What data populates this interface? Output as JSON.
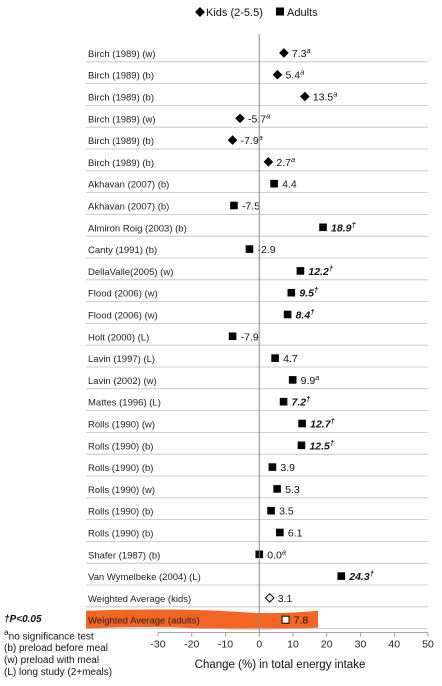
{
  "chart_data": {
    "type": "scatter",
    "legend": [
      {
        "name": "Kids (2-5.5)",
        "marker": "diamond"
      },
      {
        "name": "Adults",
        "marker": "square"
      }
    ],
    "legend_position": "top",
    "xlabel": "Change (%) in total energy intake",
    "xlim": [
      -30,
      50
    ],
    "xticks": [
      "-30",
      "-20",
      "-10",
      "0",
      "10",
      "20",
      "30",
      "40",
      "50"
    ],
    "highlight_color": "#f26522",
    "rows": [
      {
        "label": "Birch (1989)  (w)",
        "value": 7.3,
        "marker": "diamond",
        "value_text": "7.3",
        "sup": "a",
        "bold": false
      },
      {
        "label": "Birch (1989)  (b)",
        "value": 5.4,
        "marker": "diamond",
        "value_text": "5.4",
        "sup": "a",
        "bold": false
      },
      {
        "label": "Birch (1989)  (b)",
        "value": 13.5,
        "marker": "diamond",
        "value_text": "13.5",
        "sup": "a",
        "bold": false
      },
      {
        "label": "Birch (1989)  (w)",
        "value": -5.7,
        "marker": "diamond",
        "value_text": "-5.7",
        "sup": "a",
        "bold": false
      },
      {
        "label": "Birch (1989)  (b)",
        "value": -7.9,
        "marker": "diamond",
        "value_text": "-7.9",
        "sup": "a",
        "bold": false
      },
      {
        "label": "Birch (1989)  (b)",
        "value": 2.7,
        "marker": "diamond",
        "value_text": "2.7",
        "sup": "a",
        "bold": false
      },
      {
        "label": "Akhavan (2007) (b)",
        "value": 4.4,
        "marker": "square",
        "value_text": "4.4",
        "sup": "",
        "bold": false
      },
      {
        "label": "Akhavan (2007) (b)",
        "value": -7.5,
        "marker": "square",
        "value_text": "-7.5",
        "sup": "",
        "bold": false
      },
      {
        "label": "Almiron Roig (2003) (b)",
        "value": 18.9,
        "marker": "square",
        "value_text": "18.9",
        "sup": "†",
        "bold": true
      },
      {
        "label": "Canty (1991) (b)",
        "value": -2.9,
        "marker": "square",
        "value_text": "-2.9",
        "sup": "",
        "bold": false
      },
      {
        "label": "DellaValle(2005) (w)",
        "value": 12.2,
        "marker": "square",
        "value_text": "12.2",
        "sup": "†",
        "bold": true
      },
      {
        "label": "Flood (2006) (w)",
        "value": 9.5,
        "marker": "square",
        "value_text": "9.5",
        "sup": "†",
        "bold": true
      },
      {
        "label": "Flood (2006) (w)",
        "value": 8.4,
        "marker": "square",
        "value_text": "8.4",
        "sup": "†",
        "bold": true
      },
      {
        "label": "Holt (2000) (L)",
        "value": -7.9,
        "marker": "square",
        "value_text": "-7.9",
        "sup": "",
        "bold": false
      },
      {
        "label": "Lavin (1997) (L)",
        "value": 4.7,
        "marker": "square",
        "value_text": "4.7",
        "sup": "",
        "bold": false
      },
      {
        "label": "Lavin (2002) (w)",
        "value": 9.9,
        "marker": "square",
        "value_text": "9.9",
        "sup": "a",
        "bold": false
      },
      {
        "label": "Mattes (1996) (L)",
        "value": 7.2,
        "marker": "square",
        "value_text": "7.2",
        "sup": "†",
        "bold": true
      },
      {
        "label": "Rolls (1990) (w)",
        "value": 12.7,
        "marker": "square",
        "value_text": "12.7",
        "sup": "†",
        "bold": true
      },
      {
        "label": "Rolls (1990) (b)",
        "value": 12.5,
        "marker": "square",
        "value_text": "12.5",
        "sup": "†",
        "bold": true
      },
      {
        "label": "Rolls (1990) (b)",
        "value": 3.9,
        "marker": "square",
        "value_text": "3.9",
        "sup": "",
        "bold": false
      },
      {
        "label": "Rolls (1990) (w)",
        "value": 5.3,
        "marker": "square",
        "value_text": "5.3",
        "sup": "",
        "bold": false
      },
      {
        "label": "Rolls (1990) (b)",
        "value": 3.5,
        "marker": "square",
        "value_text": "3.5",
        "sup": "",
        "bold": false
      },
      {
        "label": "Rolls (1990) (b)",
        "value": 6.1,
        "marker": "square",
        "value_text": "6.1",
        "sup": "",
        "bold": false
      },
      {
        "label": "Shafer (1987) (b)",
        "value": 0.0,
        "marker": "square",
        "value_text": "0.0",
        "sup": "a",
        "bold": false
      },
      {
        "label": "Van Wymelbeke (2004) (L)",
        "value": 24.3,
        "marker": "square",
        "value_text": "24.3",
        "sup": "†",
        "bold": true
      },
      {
        "label": "Weighted Average (kids)",
        "value": 3.1,
        "marker": "open-diamond",
        "value_text": "3.1",
        "sup": "",
        "bold": false
      },
      {
        "label": "Weighted Average (adults)",
        "value": 7.8,
        "marker": "open-square",
        "value_text": "7.8",
        "sup": "",
        "bold": false,
        "highlight": true
      }
    ]
  },
  "footnotes": {
    "significance": "†P<0.05",
    "sup_a": "a",
    "no_test": "no significance test",
    "preload_before": "(b) preload before meal",
    "preload_with": "(w) preload with meal",
    "long_study": "(L) long study (2+meals)"
  }
}
